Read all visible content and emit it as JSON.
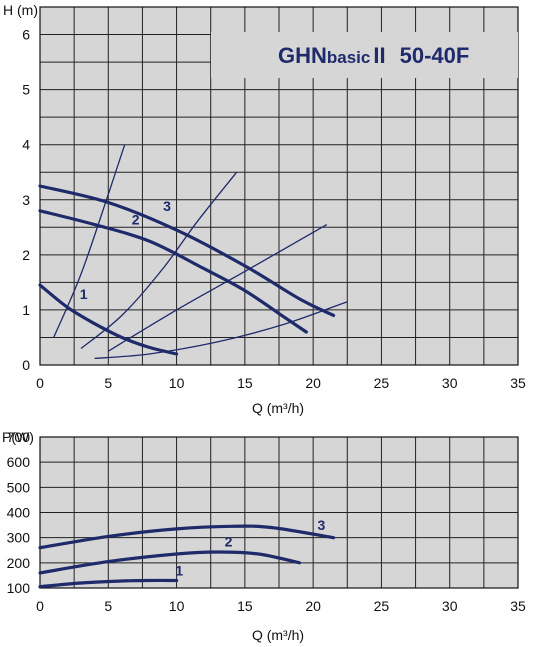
{
  "title": {
    "main": "GHN",
    "sub": "basic",
    "roman": "II",
    "model": "50-40F"
  },
  "chart_data": [
    {
      "type": "line",
      "ylabel": "H (m)",
      "xlabel": "Q (m³/h)",
      "xlim": [
        0,
        35
      ],
      "ylim": [
        0,
        6.5
      ],
      "xticks": [
        "0",
        "5",
        "10",
        "15",
        "20",
        "25",
        "30",
        "35"
      ],
      "yticks": [
        "0",
        "1",
        "2",
        "3",
        "4",
        "5",
        "6"
      ],
      "grid": true,
      "colors": {
        "curve": "#1f2a6b",
        "grid": "#222222"
      },
      "series": [
        {
          "name": "1",
          "x": [
            0,
            2,
            4,
            6,
            8,
            10
          ],
          "y": [
            1.45,
            1.05,
            0.75,
            0.5,
            0.32,
            0.2
          ]
        },
        {
          "name": "2",
          "x": [
            0,
            4,
            8,
            12,
            15,
            18,
            19.5
          ],
          "y": [
            2.8,
            2.55,
            2.25,
            1.75,
            1.35,
            0.85,
            0.6
          ]
        },
        {
          "name": "3",
          "x": [
            0,
            5,
            10,
            15,
            19,
            21.5
          ],
          "y": [
            3.25,
            2.95,
            2.45,
            1.8,
            1.2,
            0.9
          ]
        }
      ],
      "system_curves": [
        {
          "x": [
            1,
            3,
            5,
            6.2
          ],
          "y": [
            0.5,
            1.65,
            3.1,
            4.0
          ]
        },
        {
          "x": [
            3,
            6,
            9,
            11.5,
            14.4
          ],
          "y": [
            0.3,
            0.9,
            1.75,
            2.6,
            3.5
          ]
        },
        {
          "x": [
            5,
            10,
            15,
            21
          ],
          "y": [
            0.25,
            1.0,
            1.7,
            2.55
          ]
        },
        {
          "x": [
            4,
            8,
            13,
            18,
            22.5
          ],
          "y": [
            0.12,
            0.2,
            0.42,
            0.75,
            1.15
          ]
        }
      ],
      "curve_labels": [
        {
          "text": "1",
          "x": 3.2,
          "y": 1.2
        },
        {
          "text": "2",
          "x": 7.0,
          "y": 2.55
        },
        {
          "text": "3",
          "x": 9.3,
          "y": 2.8
        }
      ]
    },
    {
      "type": "line",
      "ylabel": "P(W)",
      "xlabel": "Q (m³/h)",
      "xlim": [
        0,
        35
      ],
      "ylim": [
        100,
        700
      ],
      "xticks": [
        "0",
        "5",
        "10",
        "15",
        "20",
        "25",
        "30",
        "35"
      ],
      "yticks": [
        "100",
        "200",
        "300",
        "400",
        "500",
        "600",
        "700"
      ],
      "grid": true,
      "colors": {
        "curve": "#1f2a6b",
        "grid": "#222222"
      },
      "series": [
        {
          "name": "1",
          "x": [
            0,
            3,
            6,
            8,
            10
          ],
          "y": [
            105,
            120,
            128,
            130,
            130
          ]
        },
        {
          "name": "2",
          "x": [
            0,
            5,
            10,
            13,
            16,
            19
          ],
          "y": [
            160,
            205,
            235,
            243,
            235,
            200
          ]
        },
        {
          "name": "3",
          "x": [
            0,
            5,
            10,
            14,
            17,
            21.5
          ],
          "y": [
            260,
            305,
            335,
            345,
            340,
            300
          ]
        }
      ],
      "curve_labels": [
        {
          "text": "1",
          "x": 10.2,
          "y": 150
        },
        {
          "text": "2",
          "x": 13.8,
          "y": 265
        },
        {
          "text": "3",
          "x": 20.6,
          "y": 330
        }
      ]
    }
  ]
}
